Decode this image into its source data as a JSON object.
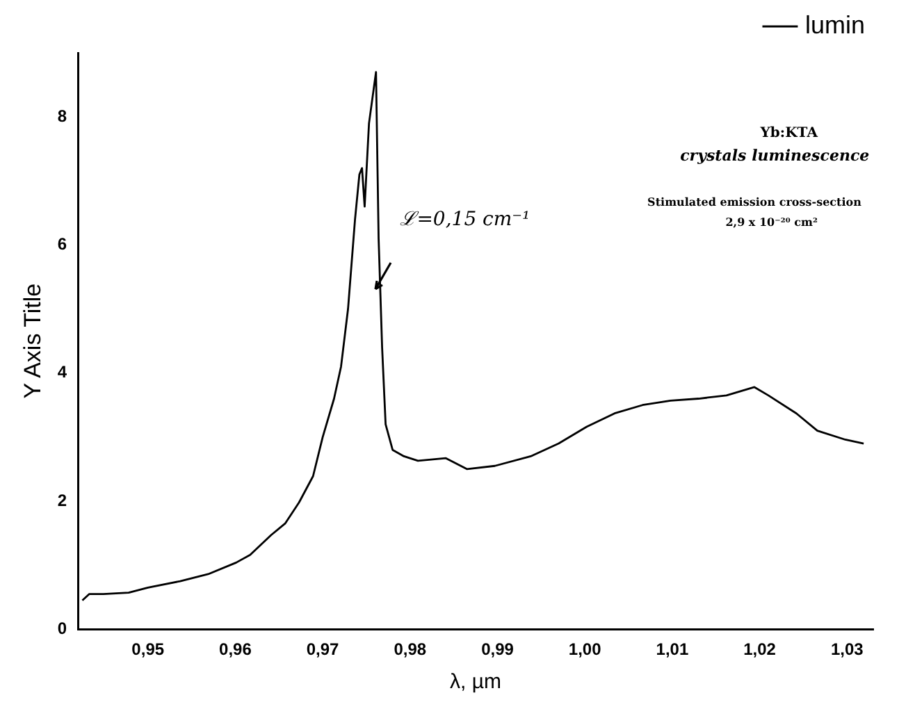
{
  "chart_data": {
    "type": "line",
    "xlabel": "λ, µm",
    "ylabel": "Y Axis Title",
    "x": [
      0.9425,
      0.9433,
      0.9449,
      0.9478,
      0.95,
      0.9537,
      0.9569,
      0.9601,
      0.9617,
      0.9641,
      0.9657,
      0.9673,
      0.9689,
      0.97,
      0.9713,
      0.9721,
      0.9729,
      0.9737,
      0.9742,
      0.9745,
      0.9748,
      0.9753,
      0.9761,
      0.9764,
      0.9768,
      0.9772,
      0.978,
      0.9793,
      0.9809,
      0.9841,
      0.9865,
      0.9897,
      0.9938,
      0.997,
      1.0002,
      1.0034,
      1.0066,
      1.0098,
      1.013,
      1.0162,
      1.0194,
      1.021,
      1.0242,
      1.0266,
      1.0298,
      1.0319
    ],
    "series": [
      {
        "name": "lumin",
        "color": "#000000",
        "values": [
          0.45,
          0.55,
          0.55,
          0.57,
          0.65,
          0.75,
          0.86,
          1.04,
          1.16,
          1.47,
          1.65,
          1.98,
          2.39,
          3.0,
          3.6,
          4.1,
          5.0,
          6.4,
          7.1,
          7.2,
          6.6,
          7.9,
          8.7,
          6.1,
          4.4,
          3.2,
          2.8,
          2.7,
          2.63,
          2.67,
          2.5,
          2.55,
          2.7,
          2.9,
          3.16,
          3.37,
          3.5,
          3.57,
          3.6,
          3.65,
          3.78,
          3.65,
          3.37,
          3.1,
          2.96,
          2.9
        ]
      }
    ],
    "xlim": [
      0.942,
      1.033
    ],
    "ylim": [
      0,
      9
    ],
    "xticks": [
      {
        "value": 0.95,
        "label": "0,95"
      },
      {
        "value": 0.96,
        "label": "0,96"
      },
      {
        "value": 0.97,
        "label": "0,97"
      },
      {
        "value": 0.98,
        "label": "0,98"
      },
      {
        "value": 0.99,
        "label": "0,99"
      },
      {
        "value": 1.0,
        "label": "1,00"
      },
      {
        "value": 1.01,
        "label": "1,01"
      },
      {
        "value": 1.02,
        "label": "1,02"
      },
      {
        "value": 1.03,
        "label": "1,03"
      }
    ],
    "yticks": [
      0,
      2,
      4,
      6,
      8
    ],
    "annotations": [
      "Yb:KTA",
      "crystals luminescence",
      "Stimulated emission cross-section",
      "2,9 x 10⁻²⁰ cm²",
      "ℒ=0,15 cm⁻¹"
    ],
    "grid": false,
    "legend": "top right",
    "marker": "none",
    "line_style": "solid"
  }
}
